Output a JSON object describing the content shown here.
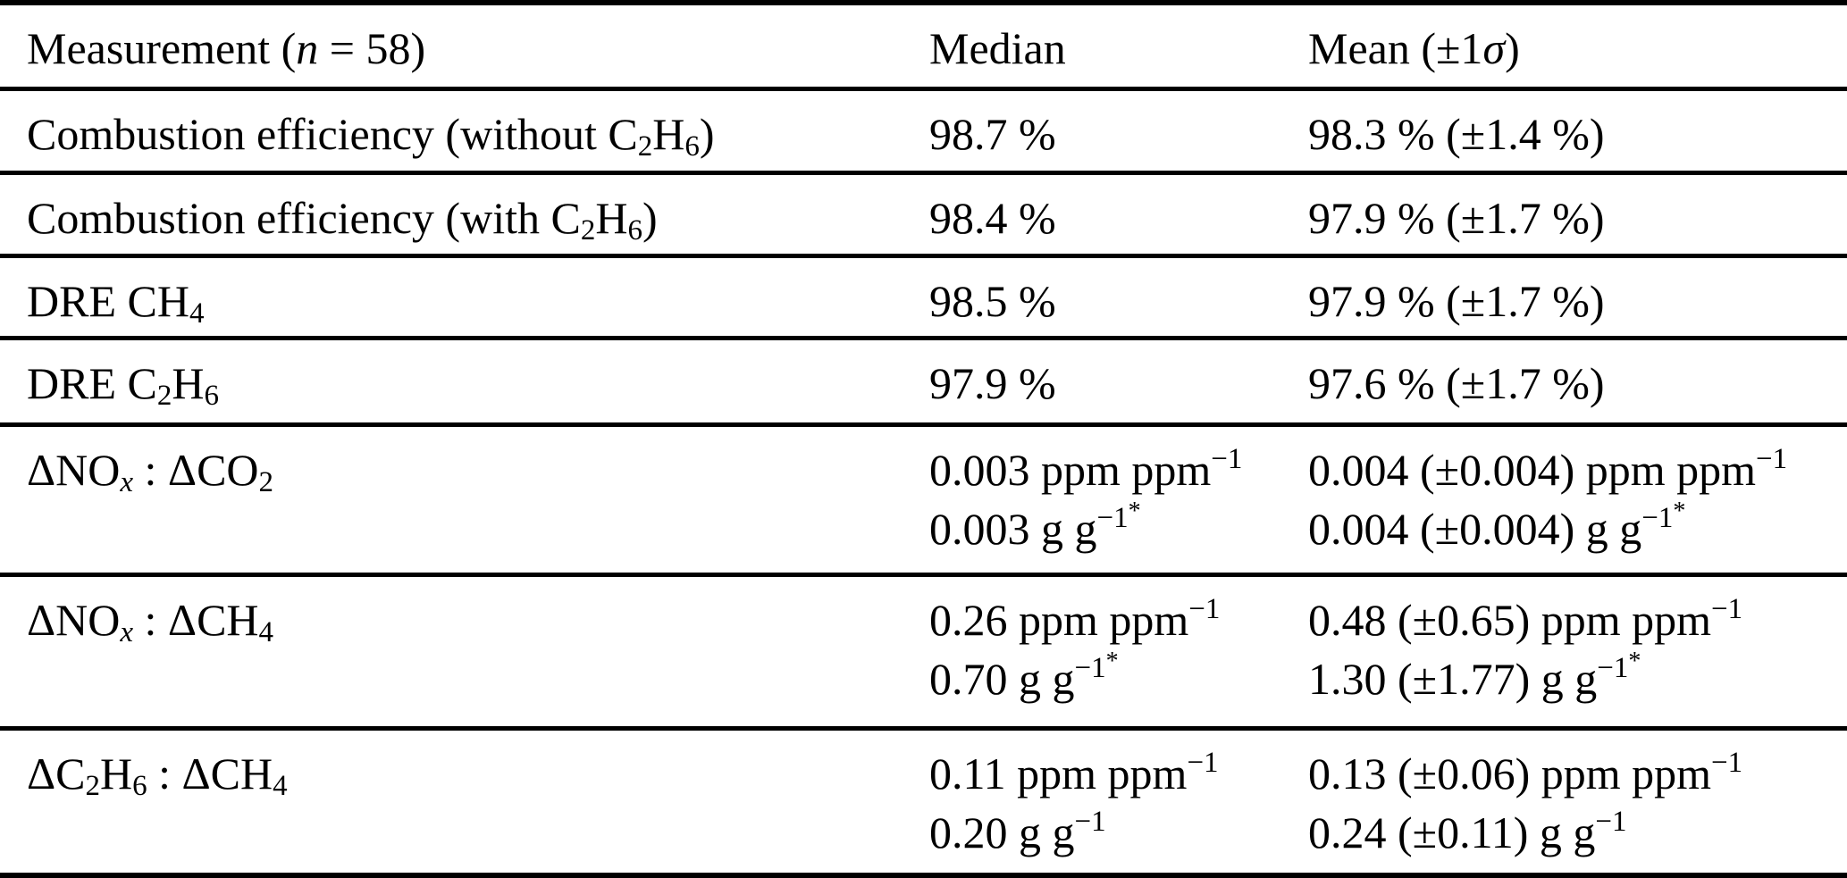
{
  "page": {
    "background": "#ffffff",
    "text_color": "#000000",
    "rule_color": "#000000"
  },
  "table": {
    "columns": [
      {
        "id": "measurement",
        "label": "Measurement (/{n} = 58)"
      },
      {
        "id": "median",
        "label": "Median"
      },
      {
        "id": "mean",
        "label": "Mean (±1/{σ})"
      }
    ],
    "rows": [
      {
        "measurement": "Combustion efficiency (without C_{2}H_{6})",
        "median": "98.7 %",
        "mean": "98.3 % (±1.4 %)"
      },
      {
        "measurement": "Combustion efficiency (with C_{2}H_{6})",
        "median": "98.4 %",
        "mean": "97.9 % (±1.7 %)"
      },
      {
        "measurement": "DRE CH_{4}",
        "median": "98.5 %",
        "mean": "97.9 % (±1.7 %)"
      },
      {
        "measurement": "DRE C_{2}H_{6}",
        "median": "97.9 %",
        "mean": "97.6 % (±1.7 %)"
      },
      {
        "measurement": "ΔNO_{/{x}} : ΔCO_{2}",
        "median": "0.003 ppm ppm^{−1}\n0.003 g g^{−1^{*}}",
        "mean": "0.004 (±0.004) ppm ppm^{−1}\n0.004 (±0.004) g g^{−1^{*}}"
      },
      {
        "measurement": "ΔNO_{/{x}} : ΔCH_{4}",
        "median": "0.26 ppm ppm^{−1}\n0.70 g g^{−1^{*}}",
        "mean": "0.48 (±0.65) ppm ppm^{−1}\n1.30 (±1.77) g g^{−1^{*}}"
      },
      {
        "measurement": "ΔC_{2}H_{6} : ΔCH_{4}",
        "median": "0.11 ppm ppm^{−1}\n0.20 g g^{−1}",
        "mean": "0.13 (±0.06) ppm ppm^{−1}\n0.24 (±0.11) g g^{−1}"
      }
    ]
  }
}
